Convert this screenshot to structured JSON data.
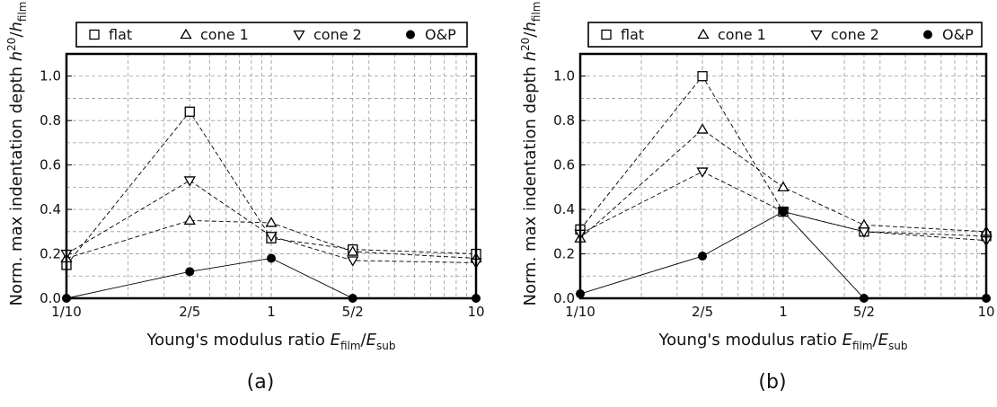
{
  "chart_data": [
    {
      "type": "line",
      "caption": "(a)",
      "xscale": "log",
      "x": [
        0.1,
        0.4,
        1,
        2.5,
        10
      ],
      "xticklabels": [
        "1/10",
        "2/5",
        "1",
        "5/2",
        "10"
      ],
      "xlim": [
        0.1,
        10
      ],
      "ylim": [
        0,
        1.1
      ],
      "yticks": [
        "0.0",
        "0.2",
        "0.4",
        "0.6",
        "0.8",
        "1.0"
      ],
      "xlabel": {
        "main": "Young's modulus ratio ",
        "e1": "E",
        "s1": "film",
        "slash": "/",
        "e2": "E",
        "s2": "sub"
      },
      "ylabel": {
        "main": "Norm. max indentation depth ",
        "h1": "h",
        "sup": "20",
        "slash": "/",
        "h2": "h",
        "s2": "film"
      },
      "grid": true,
      "legend": {
        "position": "top",
        "entries": [
          "flat",
          "cone 1",
          "cone 2",
          "O&P"
        ]
      },
      "series": [
        {
          "name": "flat",
          "marker": "square",
          "line": "dashed",
          "values": [
            0.15,
            0.84,
            0.27,
            0.22,
            0.2
          ]
        },
        {
          "name": "cone 1",
          "marker": "triangle-up",
          "line": "dashed",
          "values": [
            0.18,
            0.35,
            0.34,
            0.21,
            0.18
          ]
        },
        {
          "name": "cone 2",
          "marker": "triangle-down",
          "line": "dashed",
          "values": [
            0.2,
            0.53,
            0.28,
            0.17,
            0.16
          ]
        },
        {
          "name": "O&P",
          "marker": "circle-filled",
          "line": "solid",
          "values": [
            0.0,
            0.12,
            0.18,
            0.0,
            0.0
          ]
        }
      ]
    },
    {
      "type": "line",
      "caption": "(b)",
      "xscale": "log",
      "x": [
        0.1,
        0.4,
        1,
        2.5,
        10
      ],
      "xticklabels": [
        "1/10",
        "2/5",
        "1",
        "5/2",
        "10"
      ],
      "xlim": [
        0.1,
        10
      ],
      "ylim": [
        0,
        1.1
      ],
      "yticks": [
        "0.0",
        "0.2",
        "0.4",
        "0.6",
        "0.8",
        "1.0"
      ],
      "xlabel": {
        "main": "Young's modulus ratio ",
        "e1": "E",
        "s1": "film",
        "slash": "/",
        "e2": "E",
        "s2": "sub"
      },
      "ylabel": {
        "main": "Norm. max indentation depth ",
        "h1": "h",
        "sup": "20",
        "slash": "/",
        "h2": "h",
        "s2": "film"
      },
      "grid": true,
      "legend": {
        "position": "top",
        "entries": [
          "flat",
          "cone 1",
          "cone 2",
          "O&P"
        ]
      },
      "series": [
        {
          "name": "flat",
          "marker": "square",
          "line": "dashed",
          "values": [
            0.31,
            1.0,
            0.39,
            0.3,
            0.28
          ]
        },
        {
          "name": "cone 1",
          "marker": "triangle-up",
          "line": "dashed",
          "values": [
            0.27,
            0.76,
            0.5,
            0.33,
            0.3
          ]
        },
        {
          "name": "cone 2",
          "marker": "triangle-down",
          "line": "dashed",
          "values": [
            0.29,
            0.57,
            0.39,
            0.3,
            0.26
          ]
        },
        {
          "name": "O&P",
          "marker": "circle-filled",
          "line": "solid",
          "values": [
            0.02,
            0.19,
            0.39,
            0.0,
            0.0
          ]
        }
      ]
    }
  ]
}
